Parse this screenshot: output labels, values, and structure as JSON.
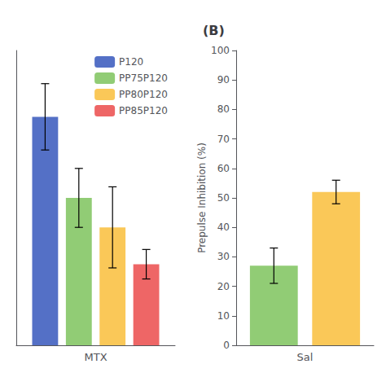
{
  "chart_data": [
    {
      "type": "bar",
      "categories": [
        "MTX"
      ],
      "series": [
        {
          "name": "P120",
          "color": "#5470c6",
          "values": [
            62
          ],
          "error": [
            9
          ]
        },
        {
          "name": "PP75P120",
          "color": "#91cc75",
          "values": [
            40
          ],
          "error": [
            8
          ]
        },
        {
          "name": "PP80P120",
          "color": "#fac858",
          "values": [
            32
          ],
          "error": [
            11
          ]
        },
        {
          "name": "PP85P120",
          "color": "#ee6666",
          "values": [
            22
          ],
          "error": [
            4
          ]
        }
      ],
      "ylim": [
        0,
        80
      ],
      "yticks": [],
      "tick_labels": "x",
      "grid": false,
      "legend": "upper right"
    },
    {
      "type": "bar",
      "title": "(B)",
      "categories": [
        "Sal"
      ],
      "ylabel": "Prepulse Inhibition (%)",
      "series": [
        {
          "name": "PP75P120",
          "color": "#91cc75",
          "values": [
            27
          ],
          "error": [
            6
          ]
        },
        {
          "name": "PP80P120",
          "color": "#fac858",
          "values": [
            52
          ],
          "error": [
            4
          ]
        }
      ],
      "ylim": [
        0,
        100
      ],
      "yticks": [
        0,
        10,
        20,
        30,
        40,
        50,
        60,
        70,
        80,
        90,
        100
      ],
      "grid": false
    }
  ]
}
